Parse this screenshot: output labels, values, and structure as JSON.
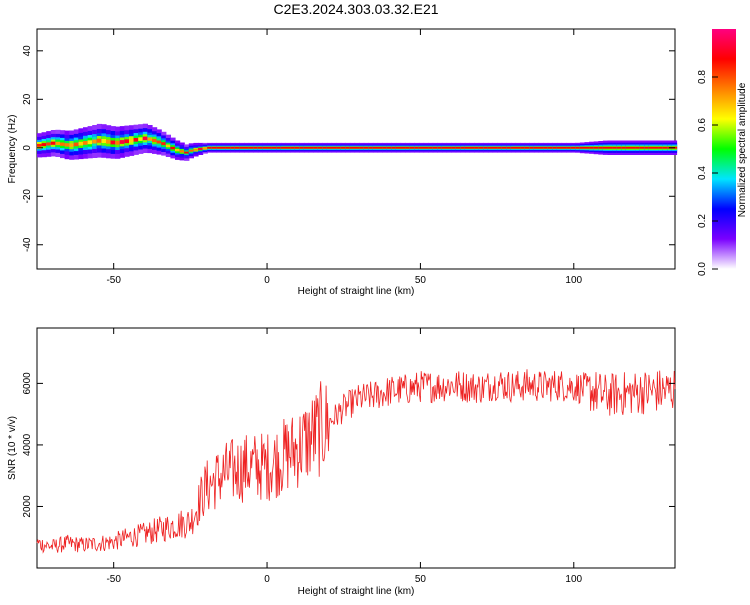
{
  "page": {
    "title": "C2E3.2024.303.03.32.E21"
  },
  "chart_data": [
    {
      "type": "heatmap",
      "title": "C2E3.2024.303.03.32.E21",
      "xlabel": "Height of straight line (km)",
      "ylabel": "Frequency (Hz)",
      "xlim": [
        -75,
        133
      ],
      "ylim": [
        -50,
        49
      ],
      "x_ticks": [
        -50,
        0,
        50,
        100
      ],
      "y_ticks": [
        -40,
        -20,
        0,
        20,
        40
      ],
      "colorbar": {
        "label": "Normalized spectral amplitude",
        "range": [
          0,
          1
        ],
        "ticks": [
          "0.0",
          "0.2",
          "0.4",
          "0.6",
          "0.8"
        ],
        "tick_values": [
          0.0,
          0.2,
          0.4,
          0.6,
          0.8
        ],
        "colormap": [
          "#ffffff",
          "#7a00ff",
          "#0000ff",
          "#00e5ff",
          "#00ff00",
          "#ffff00",
          "#ff8000",
          "#ff0000",
          "#ff0080"
        ]
      },
      "ridge_frequency_hz": [
        [
          -75,
          1
        ],
        [
          -70,
          2
        ],
        [
          -65,
          1
        ],
        [
          -60,
          2
        ],
        [
          -55,
          3
        ],
        [
          -50,
          2
        ],
        [
          -45,
          3
        ],
        [
          -40,
          4
        ],
        [
          -35,
          2
        ],
        [
          -30,
          -1
        ],
        [
          -27,
          -2
        ],
        [
          -25,
          -1
        ],
        [
          -20,
          0
        ],
        [
          -15,
          0
        ],
        [
          -10,
          0
        ],
        [
          -5,
          0
        ],
        [
          0,
          0
        ],
        [
          50,
          0
        ],
        [
          100,
          0
        ],
        [
          133,
          0
        ]
      ],
      "spread_hz": [
        [
          -75,
          5
        ],
        [
          -55,
          7
        ],
        [
          -40,
          6
        ],
        [
          -30,
          4
        ],
        [
          -20,
          2
        ],
        [
          -10,
          2
        ],
        [
          100,
          2
        ],
        [
          110,
          3
        ],
        [
          133,
          3
        ]
      ],
      "grid": false,
      "legend": "right"
    },
    {
      "type": "line",
      "xlabel": "Height of straight line (km)",
      "ylabel": "SNR (10 * v/v)",
      "xlim": [
        -75,
        133
      ],
      "ylim": [
        0,
        7800
      ],
      "x_ticks": [
        -50,
        0,
        50,
        100
      ],
      "y_ticks": [
        2000,
        4000,
        6000
      ],
      "series": [
        {
          "color": "#ee2222",
          "x": [
            -75,
            -70,
            -65,
            -60,
            -55,
            -50,
            -45,
            -40,
            -35,
            -30,
            -25,
            -20,
            -15,
            -10,
            -5,
            0,
            5,
            10,
            15,
            20,
            25,
            30,
            35,
            40,
            45,
            50,
            55,
            60,
            65,
            70,
            75,
            80,
            85,
            90,
            95,
            100,
            105,
            110,
            115,
            120,
            125,
            130,
            133
          ],
          "values": [
            800,
            700,
            800,
            750,
            800,
            850,
            1000,
            1100,
            1250,
            1400,
            1500,
            2600,
            3000,
            3200,
            3300,
            3300,
            3600,
            3900,
            4300,
            4700,
            5200,
            5500,
            5600,
            5750,
            5800,
            5900,
            5900,
            5950,
            5900,
            5850,
            6000,
            5900,
            5950,
            5900,
            5950,
            5900,
            5800,
            5600,
            5650,
            5700,
            5750,
            5750,
            5800
          ]
        }
      ],
      "grid": false,
      "legend": "none"
    }
  ]
}
